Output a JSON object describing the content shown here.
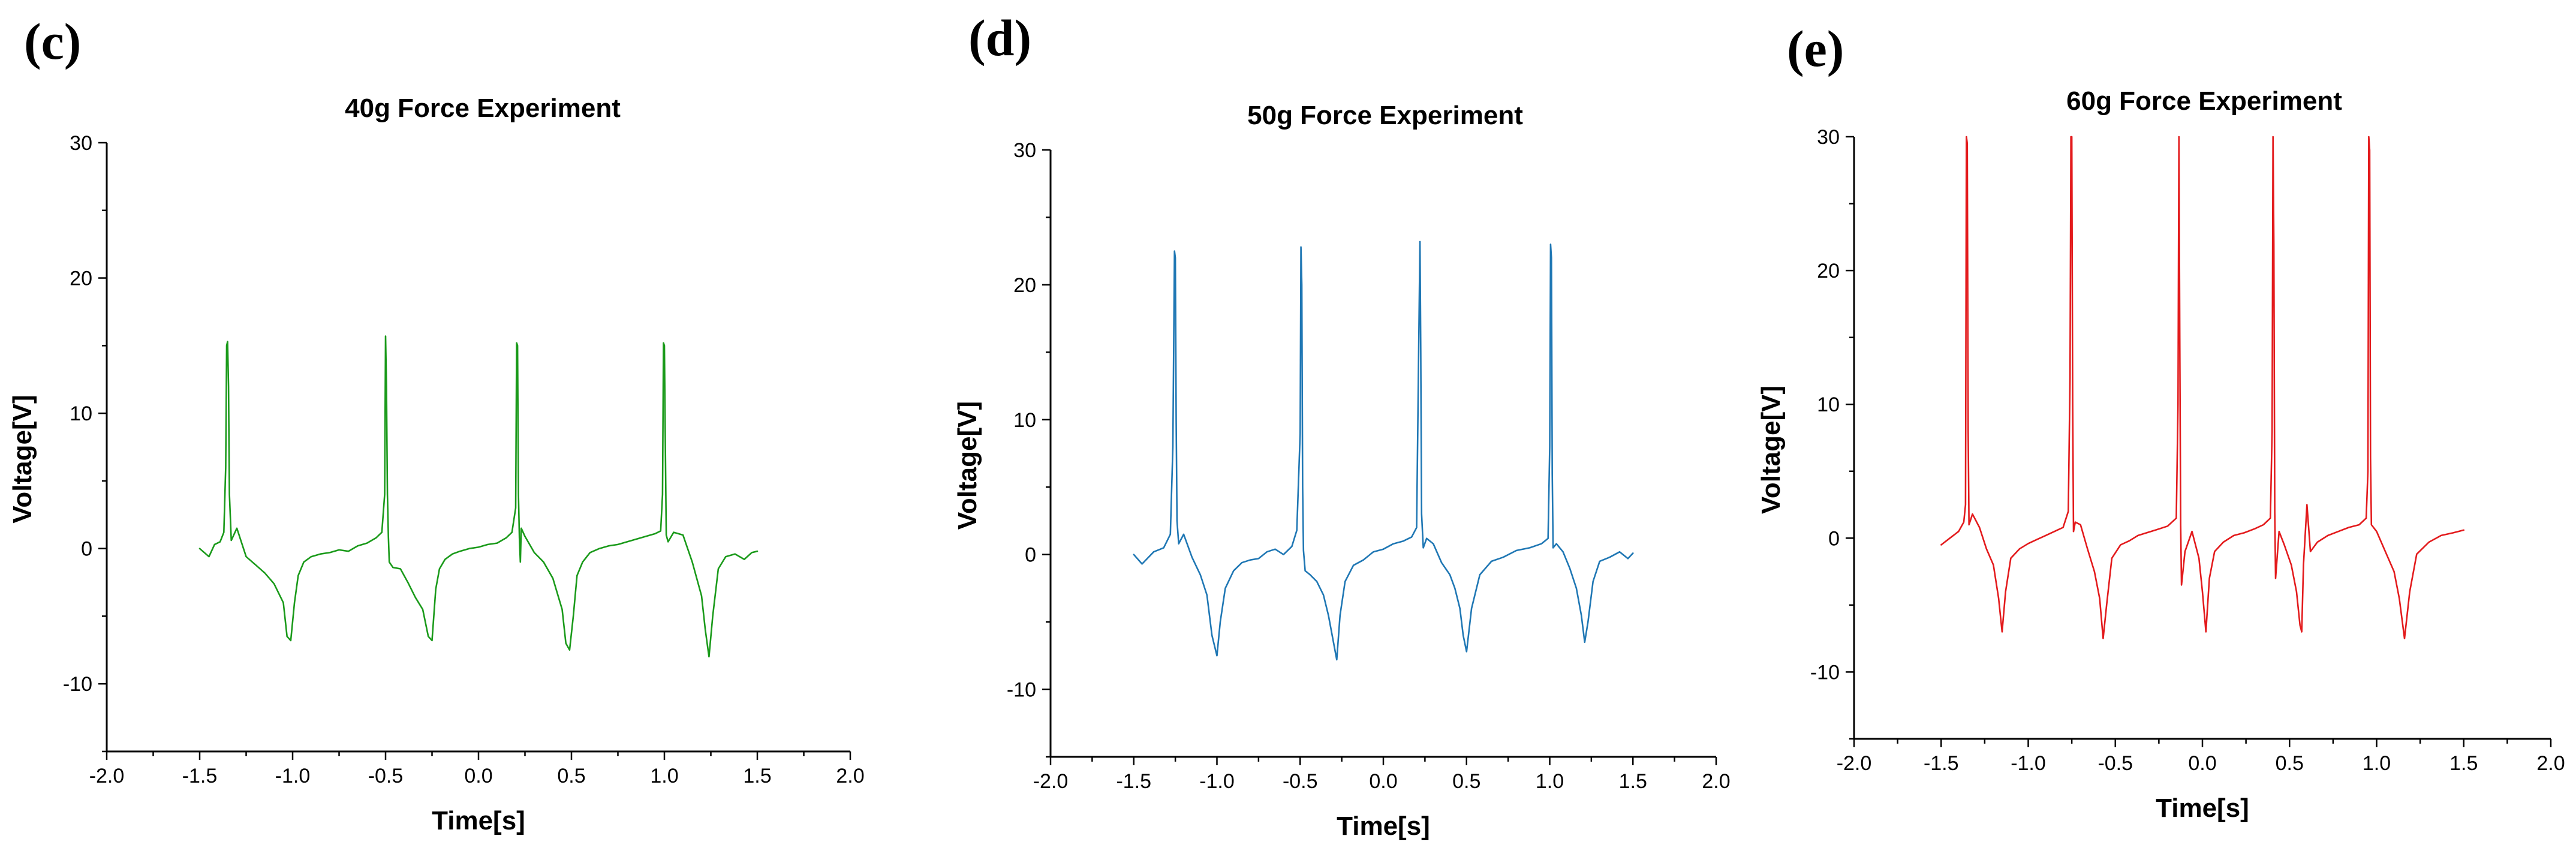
{
  "chart_data": [
    {
      "type": "line",
      "panel_label": "(c)",
      "title": "40g Force Experiment",
      "xlabel": "Time[s]",
      "ylabel": "Voltage[V]",
      "xlim": [
        -2.0,
        2.0
      ],
      "ylim": [
        -15,
        30
      ],
      "xticks": [
        -2.0,
        -1.5,
        -1.0,
        -0.5,
        0.0,
        0.5,
        1.0,
        1.5,
        2.0
      ],
      "xtick_labels": [
        "-2.0",
        "-1.5",
        "-1.0",
        "-0.5",
        "0.0",
        "0.5",
        "1.0",
        "1.5",
        "2.0"
      ],
      "yticks": [
        -10,
        0,
        10,
        20,
        30
      ],
      "ytick_labels": [
        "-10",
        "0",
        "10",
        "20",
        "30"
      ],
      "grid": false,
      "color": "#1a9a1a",
      "series": [
        {
          "name": "40g",
          "x": [
            -1.5,
            -1.45,
            -1.42,
            -1.39,
            -1.37,
            -1.36,
            -1.355,
            -1.35,
            -1.345,
            -1.34,
            -1.33,
            -1.3,
            -1.25,
            -1.2,
            -1.15,
            -1.1,
            -1.05,
            -1.03,
            -1.01,
            -0.99,
            -0.97,
            -0.94,
            -0.9,
            -0.85,
            -0.8,
            -0.75,
            -0.7,
            -0.65,
            -0.6,
            -0.55,
            -0.52,
            -0.505,
            -0.5,
            -0.495,
            -0.49,
            -0.485,
            -0.48,
            -0.46,
            -0.42,
            -0.38,
            -0.34,
            -0.3,
            -0.27,
            -0.25,
            -0.23,
            -0.21,
            -0.18,
            -0.14,
            -0.1,
            -0.05,
            0.0,
            0.05,
            0.1,
            0.15,
            0.18,
            0.2,
            0.205,
            0.21,
            0.215,
            0.22,
            0.225,
            0.23,
            0.25,
            0.3,
            0.35,
            0.4,
            0.45,
            0.47,
            0.49,
            0.51,
            0.53,
            0.56,
            0.6,
            0.65,
            0.7,
            0.75,
            0.8,
            0.85,
            0.9,
            0.95,
            0.98,
            0.99,
            0.995,
            1.0,
            1.005,
            1.01,
            1.02,
            1.05,
            1.1,
            1.15,
            1.2,
            1.22,
            1.24,
            1.26,
            1.29,
            1.33,
            1.38,
            1.43,
            1.47,
            1.5
          ],
          "y": [
            0.0,
            -0.6,
            0.3,
            0.5,
            1.2,
            6.0,
            15.0,
            15.3,
            12.0,
            4.0,
            0.6,
            1.5,
            -0.6,
            -1.2,
            -1.8,
            -2.6,
            -4.0,
            -6.5,
            -6.8,
            -4.0,
            -2.0,
            -1.0,
            -0.6,
            -0.4,
            -0.3,
            -0.1,
            -0.2,
            0.2,
            0.4,
            0.8,
            1.2,
            4.0,
            15.7,
            12.0,
            4.0,
            0.9,
            -1.0,
            -1.4,
            -1.5,
            -2.5,
            -3.6,
            -4.5,
            -6.5,
            -6.8,
            -3.0,
            -1.5,
            -0.8,
            -0.4,
            -0.2,
            0.0,
            0.1,
            0.3,
            0.4,
            0.8,
            1.2,
            3.0,
            15.2,
            15.0,
            4.0,
            0.8,
            -1.0,
            1.5,
            0.9,
            -0.3,
            -1.0,
            -2.2,
            -4.5,
            -7.0,
            -7.5,
            -5.0,
            -2.0,
            -1.0,
            -0.3,
            0.0,
            0.2,
            0.3,
            0.5,
            0.7,
            0.9,
            1.1,
            1.3,
            4.0,
            15.2,
            15.0,
            8.0,
            1.0,
            0.5,
            1.2,
            1.0,
            -1.0,
            -3.5,
            -6.0,
            -8.0,
            -5.0,
            -1.5,
            -0.6,
            -0.4,
            -0.8,
            -0.3,
            -0.2
          ]
        }
      ]
    },
    {
      "type": "line",
      "panel_label": "(d)",
      "title": "50g Force Experiment",
      "xlabel": "Time[s]",
      "ylabel": "Voltage[V]",
      "xlim": [
        -2.0,
        2.0
      ],
      "ylim": [
        -15,
        30
      ],
      "xticks": [
        -2.0,
        -1.5,
        -1.0,
        -0.5,
        0.0,
        0.5,
        1.0,
        1.5,
        2.0
      ],
      "xtick_labels": [
        "-2.0",
        "-1.5",
        "-1.0",
        "-0.5",
        "0.0",
        "0.5",
        "1.0",
        "1.5",
        "2.0"
      ],
      "yticks": [
        -10,
        0,
        10,
        20,
        30
      ],
      "ytick_labels": [
        "-10",
        "0",
        "10",
        "20",
        "30"
      ],
      "grid": false,
      "color": "#1f77b4",
      "series": [
        {
          "name": "50g",
          "x": [
            -1.5,
            -1.45,
            -1.38,
            -1.32,
            -1.28,
            -1.265,
            -1.255,
            -1.25,
            -1.245,
            -1.24,
            -1.23,
            -1.2,
            -1.15,
            -1.1,
            -1.06,
            -1.03,
            -1.0,
            -0.98,
            -0.95,
            -0.9,
            -0.85,
            -0.8,
            -0.75,
            -0.7,
            -0.65,
            -0.6,
            -0.55,
            -0.52,
            -0.5,
            -0.495,
            -0.49,
            -0.485,
            -0.48,
            -0.47,
            -0.44,
            -0.4,
            -0.36,
            -0.33,
            -0.3,
            -0.28,
            -0.26,
            -0.23,
            -0.18,
            -0.12,
            -0.06,
            0.0,
            0.06,
            0.12,
            0.17,
            0.2,
            0.215,
            0.22,
            0.225,
            0.23,
            0.24,
            0.26,
            0.3,
            0.35,
            0.4,
            0.43,
            0.46,
            0.48,
            0.5,
            0.53,
            0.58,
            0.65,
            0.72,
            0.8,
            0.88,
            0.95,
            0.99,
            1.0,
            1.005,
            1.01,
            1.015,
            1.02,
            1.04,
            1.08,
            1.12,
            1.16,
            1.19,
            1.21,
            1.23,
            1.26,
            1.3,
            1.36,
            1.42,
            1.47,
            1.5
          ],
          "y": [
            0.0,
            -0.7,
            0.2,
            0.5,
            1.5,
            8.0,
            22.5,
            22.0,
            10.0,
            2.5,
            0.8,
            1.5,
            -0.2,
            -1.5,
            -3.0,
            -6.0,
            -7.5,
            -5.0,
            -2.5,
            -1.2,
            -0.6,
            -0.4,
            -0.3,
            0.2,
            0.4,
            0.0,
            0.6,
            1.8,
            9.0,
            22.8,
            20.0,
            5.0,
            0.3,
            -1.2,
            -1.5,
            -2.0,
            -3.0,
            -4.5,
            -6.5,
            -7.8,
            -4.5,
            -2.0,
            -0.8,
            -0.4,
            0.2,
            0.4,
            0.8,
            1.0,
            1.3,
            2.0,
            18.0,
            23.2,
            15.0,
            3.0,
            0.5,
            1.2,
            0.8,
            -0.6,
            -1.5,
            -2.5,
            -4.0,
            -6.0,
            -7.2,
            -4.0,
            -1.5,
            -0.5,
            -0.2,
            0.3,
            0.5,
            0.8,
            1.2,
            8.0,
            23.0,
            22.0,
            6.0,
            0.5,
            0.8,
            0.2,
            -1.0,
            -2.5,
            -4.5,
            -6.5,
            -5.0,
            -2.0,
            -0.5,
            -0.2,
            0.2,
            -0.3,
            0.1
          ]
        }
      ]
    },
    {
      "type": "line",
      "panel_label": "(e)",
      "title": "60g Force Experiment",
      "xlabel": "Time[s]",
      "ylabel": "Voltage[V]",
      "xlim": [
        -2.0,
        2.0
      ],
      "ylim": [
        -15,
        30
      ],
      "xticks": [
        -2.0,
        -1.5,
        -1.0,
        -0.5,
        0.0,
        0.5,
        1.0,
        1.5,
        2.0
      ],
      "xtick_labels": [
        "-2.0",
        "-1.5",
        "-1.0",
        "-0.5",
        "0.0",
        "0.5",
        "1.0",
        "1.5",
        "2.0"
      ],
      "yticks": [
        -10,
        0,
        10,
        20,
        30
      ],
      "ytick_labels": [
        "-10",
        "0",
        "10",
        "20",
        "30"
      ],
      "grid": false,
      "color": "#e31a1c",
      "series": [
        {
          "name": "60g",
          "x": [
            -1.5,
            -1.45,
            -1.4,
            -1.37,
            -1.36,
            -1.355,
            -1.35,
            -1.345,
            -1.34,
            -1.32,
            -1.28,
            -1.24,
            -1.2,
            -1.17,
            -1.15,
            -1.13,
            -1.1,
            -1.05,
            -1.0,
            -0.95,
            -0.9,
            -0.85,
            -0.8,
            -0.77,
            -0.76,
            -0.755,
            -0.75,
            -0.745,
            -0.74,
            -0.73,
            -0.7,
            -0.66,
            -0.62,
            -0.59,
            -0.57,
            -0.55,
            -0.52,
            -0.47,
            -0.42,
            -0.37,
            -0.32,
            -0.27,
            -0.2,
            -0.15,
            -0.14,
            -0.135,
            -0.13,
            -0.125,
            -0.12,
            -0.1,
            -0.06,
            -0.02,
            0.0,
            0.02,
            0.04,
            0.07,
            0.12,
            0.18,
            0.24,
            0.3,
            0.35,
            0.39,
            0.4,
            0.405,
            0.41,
            0.415,
            0.42,
            0.44,
            0.47,
            0.51,
            0.54,
            0.56,
            0.57,
            0.58,
            0.6,
            0.62,
            0.66,
            0.72,
            0.78,
            0.84,
            0.9,
            0.94,
            0.95,
            0.955,
            0.96,
            0.965,
            0.97,
            1.0,
            1.05,
            1.1,
            1.13,
            1.16,
            1.19,
            1.23,
            1.3,
            1.37,
            1.44,
            1.5
          ],
          "y": [
            -0.5,
            0.0,
            0.5,
            1.2,
            2.5,
            30.0,
            29.5,
            8.0,
            1.0,
            1.8,
            0.8,
            -0.8,
            -2.0,
            -4.5,
            -7.0,
            -4.0,
            -1.5,
            -0.8,
            -0.4,
            -0.1,
            0.2,
            0.5,
            0.8,
            2.0,
            12.0,
            30.0,
            30.0,
            10.0,
            0.5,
            1.2,
            1.0,
            -0.8,
            -2.5,
            -4.5,
            -7.5,
            -5.0,
            -1.5,
            -0.5,
            -0.2,
            0.2,
            0.4,
            0.6,
            0.9,
            1.5,
            10.0,
            30.0,
            15.0,
            1.0,
            -3.5,
            -1.0,
            0.5,
            -1.5,
            -4.0,
            -7.0,
            -3.0,
            -1.0,
            -0.3,
            0.2,
            0.4,
            0.7,
            1.0,
            1.5,
            8.0,
            30.0,
            22.0,
            2.0,
            -3.0,
            0.5,
            -0.5,
            -2.0,
            -4.0,
            -6.5,
            -7.0,
            -2.0,
            2.5,
            -1.0,
            -0.3,
            0.2,
            0.5,
            0.8,
            1.0,
            1.5,
            5.0,
            30.0,
            29.0,
            6.0,
            1.0,
            0.5,
            -1.0,
            -2.5,
            -4.5,
            -7.5,
            -4.0,
            -1.2,
            -0.3,
            0.2,
            0.4,
            0.6
          ]
        }
      ]
    }
  ]
}
